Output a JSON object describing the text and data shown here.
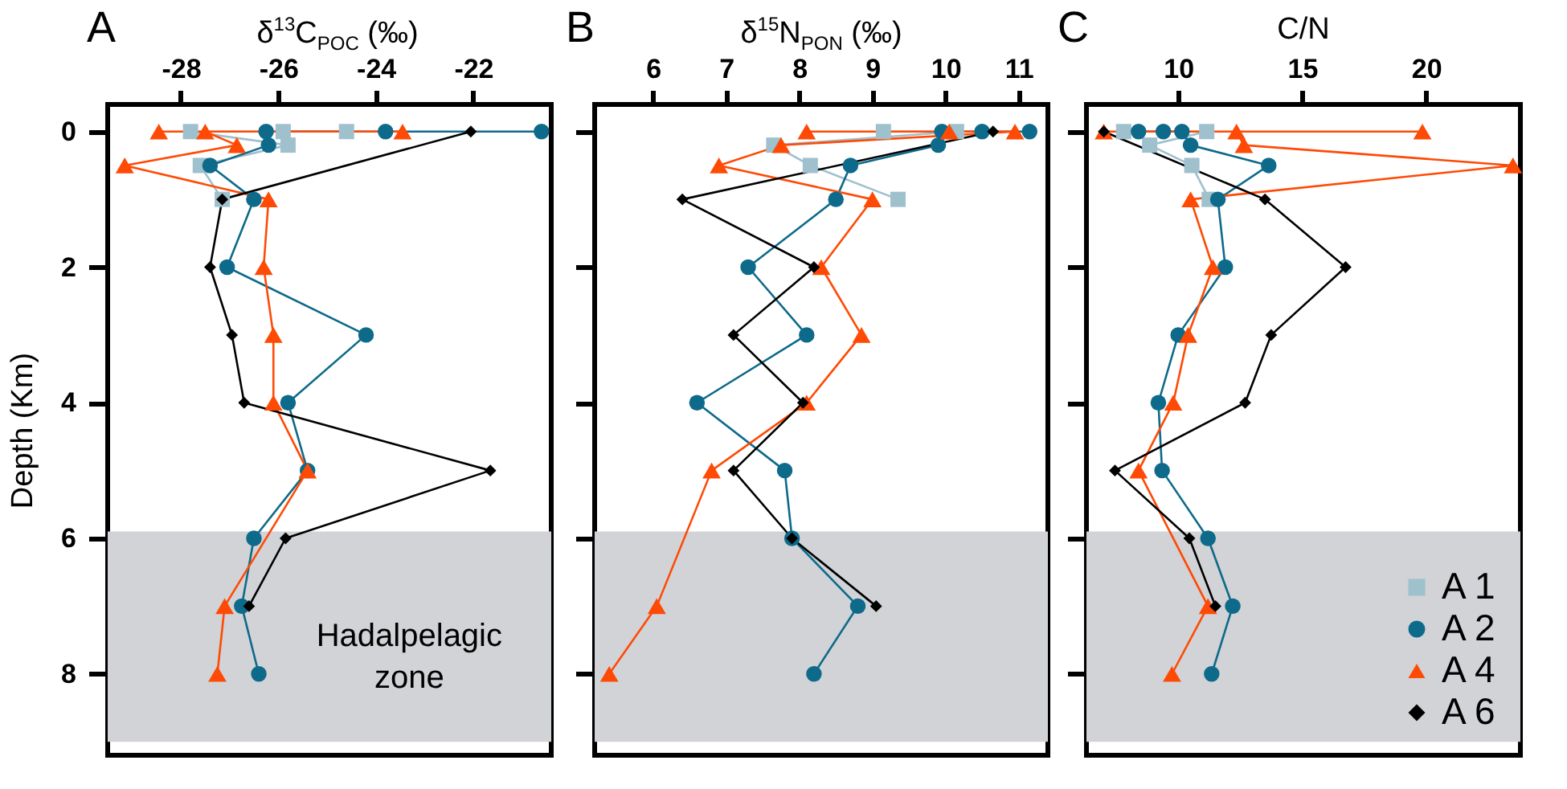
{
  "chart_data": [
    {
      "type": "line",
      "title": "A",
      "xlabel": "δ$^{13}$C$_{POC}$ (‰)",
      "ylabel": "Depth (Km)",
      "xlim": [
        -29.5,
        -20.4
      ],
      "xticks": [
        -28,
        -26,
        -24,
        -22
      ],
      "ylim": [
        9.2,
        -0.4
      ],
      "yticks": [
        0,
        2,
        4,
        6,
        8
      ],
      "grid": false,
      "legend": false,
      "bands": [
        {
          "axis": "y",
          "from": 5.9,
          "to": 9.0,
          "label": "Hadalpelagic zone",
          "color": "#d1d3d6"
        }
      ],
      "series": [
        {
          "color": "#9fc0cd",
          "marker": "square",
          "x": [
            -24.6,
            -25.9,
            -27.8,
            -25.8,
            -27.6,
            -27.15
          ],
          "values": [
            0,
            0,
            0,
            0.2,
            0.5,
            1
          ]
        },
        {
          "color": "#0e6a8a",
          "marker": "circle",
          "x": [
            -20.6,
            -23.8,
            -26.25,
            -26.2,
            -27.4,
            -26.5,
            -27.05,
            -24.2,
            -25.8,
            -25.4,
            -26.5,
            -26.75,
            -26.4
          ],
          "values": [
            0,
            0,
            0,
            0.2,
            0.5,
            1,
            2,
            3,
            4,
            5,
            6,
            7,
            8
          ]
        },
        {
          "color": "#ff4a05",
          "marker": "triangle",
          "x": [
            -28.45,
            -23.45,
            -27.5,
            -26.85,
            -29.15,
            -26.2,
            -26.3,
            -26.1,
            -26.1,
            -25.4,
            -27.1,
            -27.25
          ],
          "values": [
            0,
            0,
            0,
            0.2,
            0.5,
            1,
            2,
            3,
            4,
            5,
            7,
            8
          ]
        },
        {
          "color": "#000000",
          "marker": "diamond",
          "x": [
            -22.05,
            -27.15,
            -27.4,
            -26.95,
            -26.7,
            -21.65,
            -25.85,
            -26.6
          ],
          "values": [
            0,
            1,
            2,
            3,
            4,
            5,
            6,
            7
          ]
        }
      ]
    },
    {
      "type": "line",
      "title": "B",
      "xlabel": "δ$^{15}$N$_{PON}$ (‰)",
      "xlim": [
        5.2,
        11.4
      ],
      "xticks": [
        6,
        7,
        8,
        9,
        10,
        11
      ],
      "ylim": [
        9.2,
        -0.4
      ],
      "yticks": [
        0,
        2,
        4,
        6,
        8
      ],
      "tick_labels": "x",
      "grid": false,
      "legend": false,
      "bands": [
        {
          "axis": "y",
          "from": 5.9,
          "to": 9.0,
          "color": "#d1d3d6"
        }
      ],
      "series": [
        {
          "color": "#9fc0cd",
          "marker": "square",
          "x": [
            9.15,
            10.15,
            7.65,
            8.15,
            9.35
          ],
          "values": [
            0,
            0,
            0.2,
            0.5,
            1
          ]
        },
        {
          "color": "#0e6a8a",
          "marker": "circle",
          "x": [
            11.15,
            10.5,
            9.95,
            9.9,
            8.7,
            8.5,
            7.3,
            8.1,
            6.6,
            7.8,
            7.9,
            8.8,
            8.2
          ],
          "values": [
            0,
            0,
            0,
            0.2,
            0.5,
            1,
            2,
            3,
            4,
            5,
            6,
            7,
            8
          ]
        },
        {
          "color": "#ff4a05",
          "marker": "triangle",
          "x": [
            8.1,
            10.05,
            10.95,
            7.75,
            6.9,
            9.0,
            8.3,
            8.85,
            8.1,
            6.8,
            6.05,
            5.4
          ],
          "values": [
            0,
            0,
            0,
            0.2,
            0.5,
            1,
            2,
            3,
            4,
            5,
            7,
            8
          ]
        },
        {
          "color": "#000000",
          "marker": "diamond",
          "x": [
            10.65,
            6.4,
            8.2,
            7.1,
            8.05,
            7.1,
            7.9,
            9.05
          ],
          "values": [
            0,
            1,
            2,
            3,
            4,
            5,
            6,
            7
          ]
        }
      ]
    },
    {
      "type": "line",
      "title": "C",
      "xlabel": "C/N",
      "xlim": [
        6.3,
        23.8
      ],
      "xticks": [
        10,
        15,
        20
      ],
      "ylim": [
        9.2,
        -0.4
      ],
      "yticks": [
        0,
        2,
        4,
        6,
        8
      ],
      "tick_labels": "x",
      "grid": false,
      "legend": "bottom right",
      "bands": [
        {
          "axis": "y",
          "from": 5.9,
          "to": 9.0,
          "color": "#d1d3d6"
        }
      ],
      "series": [
        {
          "name": "A 1",
          "color": "#9fc0cd",
          "marker": "square",
          "x": [
            7.8,
            11.15,
            8.85,
            10.55,
            11.25
          ],
          "values": [
            0,
            0,
            0.2,
            0.5,
            1
          ]
        },
        {
          "name": "A 2",
          "color": "#0e6a8a",
          "marker": "circle",
          "x": [
            8.4,
            9.4,
            10.15,
            10.5,
            13.65,
            11.6,
            11.9,
            10.0,
            9.2,
            9.35,
            11.2,
            12.2,
            11.35
          ],
          "values": [
            0,
            0,
            0,
            0.2,
            0.5,
            1,
            2,
            3,
            4,
            5,
            6,
            7,
            8
          ]
        },
        {
          "name": "A 4",
          "color": "#ff4a05",
          "marker": "triangle",
          "x": [
            7.0,
            19.85,
            12.35,
            12.65,
            23.5,
            10.5,
            11.4,
            10.4,
            9.8,
            8.4,
            11.2,
            9.75
          ],
          "values": [
            0,
            0,
            0,
            0.2,
            0.5,
            1,
            2,
            3,
            4,
            5,
            7,
            8
          ]
        },
        {
          "name": "A 6",
          "color": "#000000",
          "marker": "diamond",
          "x": [
            7.0,
            13.5,
            16.75,
            13.75,
            12.7,
            7.45,
            10.45,
            11.5
          ],
          "values": [
            0,
            1,
            2,
            3,
            4,
            5,
            6,
            7
          ]
        }
      ]
    }
  ]
}
